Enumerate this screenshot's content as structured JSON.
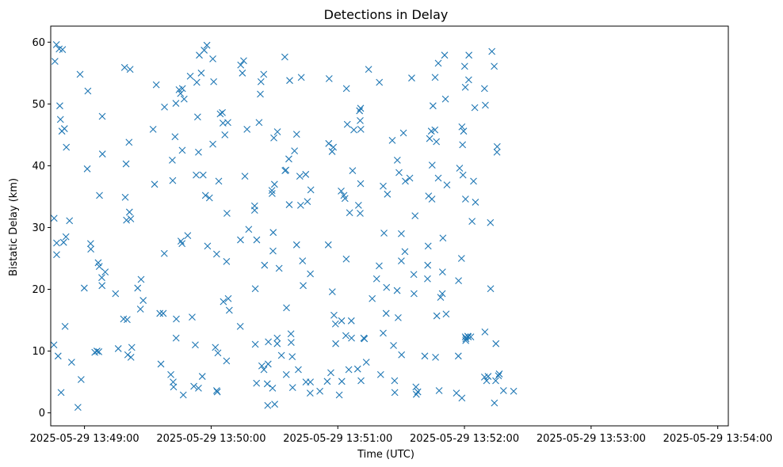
{
  "chart_data": {
    "type": "scatter",
    "title": "Detections in Delay",
    "xlabel": "Time (UTC)",
    "ylabel": "Bistatic Delay (km)",
    "marker": "x",
    "color": "#1f77b4",
    "grid": false,
    "legend": "none",
    "x_ticks": [
      "2025-05-29 13:49:00",
      "2025-05-29 13:50:00",
      "2025-05-29 13:51:00",
      "2025-05-29 13:52:00",
      "2025-05-29 13:53:00",
      "2025-05-29 13:54:00"
    ],
    "y_ticks": [
      "0",
      "10",
      "20",
      "30",
      "40",
      "50",
      "60"
    ],
    "xlim": [
      "2025-05-29 13:48:44",
      "2025-05-29 13:54:05"
    ],
    "ylim": [
      -2.1,
      62.6
    ],
    "points": [
      [
        "13:48:45.6",
        31.5
      ],
      [
        "13:48:45.5",
        11.0
      ],
      [
        "13:48:46.0",
        56.9
      ],
      [
        "13:48:46.7",
        59.6
      ],
      [
        "13:48:46.8",
        27.5
      ],
      [
        "13:48:46.8",
        25.6
      ],
      [
        "13:48:47.5",
        9.2
      ],
      [
        "13:48:48.0",
        58.9
      ],
      [
        "13:48:48.3",
        49.7
      ],
      [
        "13:48:48.6",
        47.5
      ],
      [
        "13:48:48.9",
        3.3
      ],
      [
        "13:48:49.3",
        45.6
      ],
      [
        "13:48:49.6",
        58.8
      ],
      [
        "13:48:50.1",
        27.6
      ],
      [
        "13:48:50.5",
        46.0
      ],
      [
        "13:48:50.8",
        14.0
      ],
      [
        "13:48:51.2",
        28.5
      ],
      [
        "13:48:51.4",
        43.0
      ],
      [
        "13:48:52.9",
        31.1
      ],
      [
        "13:48:53.9",
        8.2
      ],
      [
        "13:48:56.9",
        0.9
      ],
      [
        "13:48:57.9",
        54.8
      ],
      [
        "13:48:58.4",
        5.4
      ],
      [
        "13:48:59.9",
        20.2
      ],
      [
        "13:49:01.3",
        39.5
      ],
      [
        "13:49:01.6",
        52.1
      ],
      [
        "13:49:02.9",
        27.4
      ],
      [
        "13:49:03.0",
        26.5
      ],
      [
        "13:49:04.9",
        9.8
      ],
      [
        "13:49:05.9",
        10.0
      ],
      [
        "13:49:06.5",
        24.3
      ],
      [
        "13:49:06.8",
        9.9
      ],
      [
        "13:49:07.0",
        23.7
      ],
      [
        "13:49:07.1",
        35.2
      ],
      [
        "13:49:08.2",
        21.9
      ],
      [
        "13:49:08.3",
        20.6
      ],
      [
        "13:49:08.4",
        48.0
      ],
      [
        "13:49:08.5",
        41.9
      ],
      [
        "13:49:09.8",
        22.8
      ],
      [
        "13:49:14.7",
        19.3
      ],
      [
        "13:49:16.0",
        10.4
      ],
      [
        "13:49:18.5",
        15.2
      ],
      [
        "13:49:19.0",
        55.9
      ],
      [
        "13:49:19.3",
        34.9
      ],
      [
        "13:49:19.7",
        40.3
      ],
      [
        "13:49:19.9",
        31.2
      ],
      [
        "13:49:20.2",
        15.1
      ],
      [
        "13:49:20.5",
        9.4
      ],
      [
        "13:49:21.1",
        43.8
      ],
      [
        "13:49:21.3",
        32.5
      ],
      [
        "13:49:21.6",
        55.6
      ],
      [
        "13:49:21.9",
        31.4
      ],
      [
        "13:49:22.0",
        9.0
      ],
      [
        "13:49:22.4",
        10.6
      ],
      [
        "13:49:25.2",
        20.2
      ],
      [
        "13:49:26.5",
        16.8
      ],
      [
        "13:49:26.8",
        21.6
      ],
      [
        "13:49:27.8",
        18.2
      ],
      [
        "13:49:32.5",
        45.9
      ],
      [
        "13:49:33.2",
        37.0
      ],
      [
        "13:49:34.0",
        53.1
      ],
      [
        "13:49:35.7",
        16.1
      ],
      [
        "13:49:36.2",
        7.9
      ],
      [
        "13:49:37.3",
        16.1
      ],
      [
        "13:49:37.8",
        25.8
      ],
      [
        "13:49:37.9",
        49.5
      ],
      [
        "13:49:40.9",
        6.2
      ],
      [
        "13:49:41.6",
        40.9
      ],
      [
        "13:49:41.8",
        37.6
      ],
      [
        "13:49:42.0",
        5.0
      ],
      [
        "13:49:42.2",
        4.2
      ],
      [
        "13:49:42.9",
        44.7
      ],
      [
        "13:49:43.3",
        50.1
      ],
      [
        "13:49:43.5",
        15.2
      ],
      [
        "13:49:43.4",
        12.1
      ],
      [
        "13:49:44.8",
        52.3
      ],
      [
        "13:49:45.5",
        51.7
      ],
      [
        "13:49:45.7",
        27.8
      ],
      [
        "13:49:46.2",
        27.4
      ],
      [
        "13:49:46.3",
        42.5
      ],
      [
        "13:49:46.4",
        52.5
      ],
      [
        "13:49:46.8",
        2.9
      ],
      [
        "13:49:47.2",
        50.8
      ],
      [
        "13:49:48.9",
        28.7
      ],
      [
        "13:49:50.1",
        54.5
      ],
      [
        "13:49:51.0",
        15.5
      ],
      [
        "13:49:51.8",
        4.3
      ],
      [
        "13:49:52.5",
        11.0
      ],
      [
        "13:49:52.9",
        38.5
      ],
      [
        "13:49:53.2",
        53.5
      ],
      [
        "13:49:53.6",
        47.9
      ],
      [
        "13:49:54.0",
        4.0
      ],
      [
        "13:49:54.0",
        42.2
      ],
      [
        "13:49:54.4",
        57.9
      ],
      [
        "13:49:55.3",
        55.0
      ],
      [
        "13:49:55.8",
        5.9
      ],
      [
        "13:49:56.2",
        38.5
      ],
      [
        "13:49:56.7",
        58.7
      ],
      [
        "13:49:57.3",
        35.2
      ],
      [
        "13:49:58.0",
        59.5
      ],
      [
        "13:49:58.3",
        27.0
      ],
      [
        "13:49:59.2",
        34.8
      ],
      [
        "13:50:00.8",
        43.5
      ],
      [
        "13:50:00.8",
        57.3
      ],
      [
        "13:50:01.2",
        53.6
      ],
      [
        "13:50:02.0",
        10.6
      ],
      [
        "13:50:02.6",
        3.6
      ],
      [
        "13:50:02.6",
        25.7
      ],
      [
        "13:50:02.9",
        3.4
      ],
      [
        "13:50:03.2",
        9.7
      ],
      [
        "13:50:03.6",
        37.5
      ],
      [
        "13:50:04.3",
        48.4
      ],
      [
        "13:50:05.3",
        48.6
      ],
      [
        "13:50:05.6",
        46.9
      ],
      [
        "13:50:05.8",
        18.0
      ],
      [
        "13:50:06.5",
        45.0
      ],
      [
        "13:50:07.3",
        24.5
      ],
      [
        "13:50:07.5",
        32.3
      ],
      [
        "13:50:07.9",
        47.0
      ],
      [
        "13:50:08.1",
        18.5
      ],
      [
        "13:50:08.6",
        16.6
      ],
      [
        "13:50:07.3",
        8.4
      ],
      [
        "13:50:13.9",
        28.0
      ],
      [
        "13:50:13.8",
        14.0
      ],
      [
        "13:50:14.0",
        56.3
      ],
      [
        "13:50:14.8",
        55.0
      ],
      [
        "13:50:15.4",
        57.0
      ],
      [
        "13:50:16.0",
        38.3
      ],
      [
        "13:50:17.0",
        45.9
      ],
      [
        "13:50:17.8",
        29.7
      ],
      [
        "13:50:20.6",
        33.5
      ],
      [
        "13:50:20.6",
        32.8
      ],
      [
        "13:50:20.9",
        20.1
      ],
      [
        "13:50:20.9",
        11.1
      ],
      [
        "13:50:21.5",
        4.8
      ],
      [
        "13:50:21.6",
        28.0
      ],
      [
        "13:50:22.7",
        47.0
      ],
      [
        "13:50:23.3",
        51.6
      ],
      [
        "13:50:23.6",
        53.6
      ],
      [
        "13:50:24.0",
        7.6
      ],
      [
        "13:50:24.9",
        54.8
      ],
      [
        "13:50:25.0",
        7.0
      ],
      [
        "13:50:25.3",
        23.9
      ],
      [
        "13:50:26.6",
        4.7
      ],
      [
        "13:50:26.8",
        1.2
      ],
      [
        "13:50:27.1",
        11.5
      ],
      [
        "13:50:27.0",
        7.9
      ],
      [
        "13:50:28.8",
        36.0
      ],
      [
        "13:50:28.9",
        35.5
      ],
      [
        "13:50:29.1",
        4.0
      ],
      [
        "13:50:29.3",
        26.2
      ],
      [
        "13:50:29.4",
        29.2
      ],
      [
        "13:50:29.7",
        44.5
      ],
      [
        "13:50:30.0",
        37.0
      ],
      [
        "13:50:30.1",
        1.4
      ],
      [
        "13:50:31.3",
        12.1
      ],
      [
        "13:50:31.3",
        11.2
      ],
      [
        "13:50:31.4",
        45.5
      ],
      [
        "13:50:32.2",
        23.4
      ],
      [
        "13:50:33.3",
        9.3
      ],
      [
        "13:50:34.9",
        57.6
      ],
      [
        "13:50:35.0",
        39.2
      ],
      [
        "13:50:35.4",
        39.3
      ],
      [
        "13:50:35.6",
        6.2
      ],
      [
        "13:50:35.7",
        17.0
      ],
      [
        "13:50:36.8",
        41.1
      ],
      [
        "13:50:37.0",
        33.7
      ],
      [
        "13:50:37.2",
        53.8
      ],
      [
        "13:50:37.8",
        12.8
      ],
      [
        "13:50:37.9",
        11.4
      ],
      [
        "13:50:38.4",
        9.1
      ],
      [
        "13:50:38.6",
        4.1
      ],
      [
        "13:50:39.5",
        42.4
      ],
      [
        "13:50:40.5",
        45.1
      ],
      [
        "13:50:40.5",
        27.2
      ],
      [
        "13:50:41.3",
        7.0
      ],
      [
        "13:50:42.0",
        38.3
      ],
      [
        "13:50:42.4",
        33.6
      ],
      [
        "13:50:42.7",
        54.3
      ],
      [
        "13:50:43.3",
        24.6
      ],
      [
        "13:50:43.6",
        20.6
      ],
      [
        "13:50:44.8",
        38.6
      ],
      [
        "13:50:44.9",
        5.0
      ],
      [
        "13:50:45.6",
        34.2
      ],
      [
        "13:50:47.0",
        22.5
      ],
      [
        "13:50:47.2",
        36.1
      ],
      [
        "13:50:46.9",
        3.2
      ],
      [
        "13:50:47.0",
        5.0
      ],
      [
        "13:50:51.5",
        3.5
      ],
      [
        "13:50:55.0",
        5.1
      ],
      [
        "13:50:55.5",
        27.2
      ],
      [
        "13:50:55.7",
        43.6
      ],
      [
        "13:50:55.9",
        54.1
      ],
      [
        "13:50:56.7",
        6.5
      ],
      [
        "13:50:57.3",
        42.3
      ],
      [
        "13:50:57.4",
        19.6
      ],
      [
        "13:50:57.9",
        43.0
      ],
      [
        "13:50:58.2",
        15.8
      ],
      [
        "13:50:58.9",
        14.4
      ],
      [
        "13:50:59.0",
        11.2
      ],
      [
        "13:51:00.7",
        2.9
      ],
      [
        "13:51:01.6",
        35.9
      ],
      [
        "13:51:01.8",
        14.9
      ],
      [
        "13:51:01.9",
        5.1
      ],
      [
        "13:51:02.9",
        35.2
      ],
      [
        "13:51:03.4",
        34.7
      ],
      [
        "13:51:03.8",
        12.5
      ],
      [
        "13:51:04.0",
        24.9
      ],
      [
        "13:51:04.1",
        52.5
      ],
      [
        "13:51:04.5",
        46.7
      ],
      [
        "13:51:05.2",
        7.0
      ],
      [
        "13:51:05.6",
        32.4
      ],
      [
        "13:51:06.4",
        14.9
      ],
      [
        "13:51:06.5",
        12.1
      ],
      [
        "13:51:07.0",
        39.2
      ],
      [
        "13:51:07.6",
        45.8
      ],
      [
        "13:51:09.4",
        7.1
      ],
      [
        "13:51:09.8",
        33.6
      ],
      [
        "13:51:10.3",
        48.9
      ],
      [
        "13:51:10.6",
        47.3
      ],
      [
        "13:51:10.8",
        49.3
      ],
      [
        "13:51:10.9",
        45.9
      ],
      [
        "13:51:10.8",
        37.1
      ],
      [
        "13:51:10.6",
        32.3
      ],
      [
        "13:51:11.0",
        5.2
      ],
      [
        "13:51:12.3",
        12.1
      ],
      [
        "13:51:12.6",
        12.0
      ],
      [
        "13:51:13.5",
        8.2
      ],
      [
        "13:51:14.6",
        55.6
      ],
      [
        "13:51:16.3",
        18.5
      ],
      [
        "13:51:18.4",
        21.7
      ],
      [
        "13:51:19.7",
        53.5
      ],
      [
        "13:51:19.6",
        23.8
      ],
      [
        "13:51:20.3",
        6.2
      ],
      [
        "13:51:21.5",
        12.9
      ],
      [
        "13:51:21.5",
        36.7
      ],
      [
        "13:51:21.9",
        29.1
      ],
      [
        "13:51:22.9",
        16.1
      ],
      [
        "13:51:23.1",
        20.3
      ],
      [
        "13:51:23.5",
        35.4
      ],
      [
        "13:51:25.8",
        44.1
      ],
      [
        "13:51:26.4",
        10.9
      ],
      [
        "13:51:26.9",
        5.2
      ],
      [
        "13:51:27.0",
        3.3
      ],
      [
        "13:51:28.1",
        19.8
      ],
      [
        "13:51:28.2",
        40.9
      ],
      [
        "13:51:28.6",
        15.4
      ],
      [
        "13:51:29.0",
        38.9
      ],
      [
        "13:51:30.1",
        24.6
      ],
      [
        "13:51:30.1",
        29.0
      ],
      [
        "13:51:30.2",
        9.4
      ],
      [
        "13:51:31.1",
        45.3
      ],
      [
        "13:51:31.8",
        26.1
      ],
      [
        "13:51:32.0",
        37.5
      ],
      [
        "13:51:34.1",
        38.0
      ],
      [
        "13:51:35.0",
        54.2
      ],
      [
        "13:51:36.0",
        22.4
      ],
      [
        "13:51:36.1",
        19.3
      ],
      [
        "13:51:36.6",
        31.9
      ],
      [
        "13:51:37.0",
        4.2
      ],
      [
        "13:51:37.2",
        3.0
      ],
      [
        "13:51:37.9",
        3.4
      ],
      [
        "13:51:41.2",
        9.2
      ],
      [
        "13:51:42.5",
        21.7
      ],
      [
        "13:51:42.6",
        23.9
      ],
      [
        "13:51:42.8",
        27.0
      ],
      [
        "13:51:43.0",
        35.1
      ],
      [
        "13:51:43.5",
        44.4
      ],
      [
        "13:51:44.3",
        45.6
      ],
      [
        "13:51:44.6",
        34.6
      ],
      [
        "13:51:44.7",
        40.1
      ],
      [
        "13:51:45.1",
        49.7
      ],
      [
        "13:51:46.0",
        45.8
      ],
      [
        "13:51:46.1",
        54.3
      ],
      [
        "13:51:46.3",
        9.0
      ],
      [
        "13:51:46.7",
        43.9
      ],
      [
        "13:51:46.9",
        15.7
      ],
      [
        "13:51:47.6",
        56.6
      ],
      [
        "13:51:47.6",
        38.0
      ],
      [
        "13:51:48.0",
        3.6
      ],
      [
        "13:51:48.7",
        18.7
      ],
      [
        "13:51:49.5",
        19.3
      ],
      [
        "13:51:49.6",
        22.8
      ],
      [
        "13:51:49.8",
        28.3
      ],
      [
        "13:51:50.6",
        57.9
      ],
      [
        "13:51:51.0",
        50.8
      ],
      [
        "13:51:51.3",
        16.0
      ],
      [
        "13:51:51.7",
        36.9
      ],
      [
        "13:51:56.2",
        3.2
      ],
      [
        "13:51:57.2",
        21.4
      ],
      [
        "13:51:57.1",
        9.2
      ],
      [
        "13:51:57.7",
        39.6
      ],
      [
        "13:51:58.8",
        46.3
      ],
      [
        "13:51:58.6",
        25.0
      ],
      [
        "13:51:58.8",
        2.4
      ],
      [
        "13:51:59.1",
        43.4
      ],
      [
        "13:51:59.6",
        45.6
      ],
      [
        "13:51:59.3",
        38.5
      ],
      [
        "13:52:00.1",
        56.1
      ],
      [
        "13:52:00.4",
        52.7
      ],
      [
        "13:52:00.5",
        34.6
      ],
      [
        "13:52:00.4",
        12.3
      ],
      [
        "13:52:00.6",
        11.7
      ],
      [
        "13:52:00.7",
        12.0
      ],
      [
        "13:52:01.6",
        12.4
      ],
      [
        "13:52:01.8",
        12.3
      ],
      [
        "13:52:02.0",
        53.9
      ],
      [
        "13:52:02.1",
        57.9
      ],
      [
        "13:52:03.0",
        12.3
      ],
      [
        "13:52:03.6",
        31.0
      ],
      [
        "13:52:04.3",
        37.5
      ],
      [
        "13:52:04.9",
        49.4
      ],
      [
        "13:52:05.2",
        34.1
      ],
      [
        "13:52:09.7",
        13.1
      ],
      [
        "13:52:09.5",
        52.5
      ],
      [
        "13:52:09.9",
        49.8
      ],
      [
        "13:52:09.5",
        5.8
      ],
      [
        "13:52:10.5",
        5.2
      ],
      [
        "13:52:11.2",
        5.9
      ],
      [
        "13:52:12.4",
        20.1
      ],
      [
        "13:52:12.3",
        30.8
      ],
      [
        "13:52:13.0",
        58.5
      ],
      [
        "13:52:14.1",
        56.1
      ],
      [
        "13:52:14.2",
        1.6
      ],
      [
        "13:52:14.9",
        11.2
      ],
      [
        "13:52:14.8",
        5.2
      ],
      [
        "13:52:15.5",
        43.1
      ],
      [
        "13:52:15.4",
        42.2
      ],
      [
        "13:52:16.1",
        6.0
      ],
      [
        "13:52:16.5",
        6.3
      ],
      [
        "13:52:18.5",
        3.6
      ],
      [
        "13:52:23.3",
        3.5
      ]
    ]
  }
}
